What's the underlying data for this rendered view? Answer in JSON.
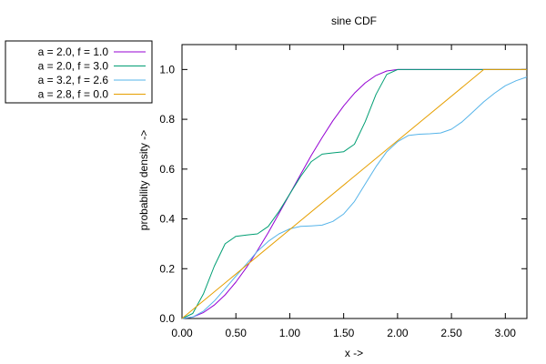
{
  "chart_data": {
    "type": "line",
    "title": "sine CDF",
    "xlabel": "x ->",
    "ylabel": "probability density ->",
    "xlim": [
      0,
      3.2
    ],
    "ylim": [
      0,
      1.1
    ],
    "x_ticks": [
      0,
      0.5,
      1.0,
      1.5,
      2.0,
      2.5,
      3.0
    ],
    "x_tick_labels": [
      "0.00",
      "0.50",
      "1.00",
      "1.50",
      "2.00",
      "2.50",
      "3.00"
    ],
    "y_ticks": [
      0,
      0.2,
      0.4,
      0.6,
      0.8,
      1.0
    ],
    "y_tick_labels": [
      "0.0",
      "0.2",
      "0.4",
      "0.6",
      "0.8",
      "1.0"
    ],
    "grid": false,
    "legend_position": "left, outside plot area",
    "series": [
      {
        "name": "a = 2.0, f = 1.0",
        "color": "#9400d3",
        "x": [
          0.0,
          0.1,
          0.2,
          0.3,
          0.4,
          0.5,
          0.6,
          0.7,
          0.8,
          0.9,
          1.0,
          1.1,
          1.2,
          1.3,
          1.4,
          1.5,
          1.6,
          1.7,
          1.8,
          1.9,
          2.0,
          2.2,
          2.4,
          2.6,
          2.8,
          3.0,
          3.2
        ],
        "y": [
          0.0,
          0.006,
          0.024,
          0.054,
          0.095,
          0.146,
          0.206,
          0.273,
          0.345,
          0.422,
          0.5,
          0.578,
          0.655,
          0.727,
          0.794,
          0.854,
          0.905,
          0.946,
          0.976,
          0.994,
          1.0,
          1.0,
          1.0,
          1.0,
          1.0,
          1.0,
          1.0
        ]
      },
      {
        "name": "a = 2.0, f = 3.0",
        "color": "#009e73",
        "x": [
          0.0,
          0.1,
          0.2,
          0.3,
          0.4,
          0.5,
          0.6,
          0.7,
          0.8,
          0.9,
          1.0,
          1.1,
          1.2,
          1.3,
          1.4,
          1.5,
          1.6,
          1.7,
          1.8,
          1.9,
          2.0,
          2.2,
          2.4,
          2.6,
          2.8,
          3.0,
          3.2
        ],
        "y": [
          0.0,
          0.02,
          0.1,
          0.21,
          0.3,
          0.33,
          0.335,
          0.34,
          0.37,
          0.43,
          0.5,
          0.57,
          0.63,
          0.66,
          0.665,
          0.67,
          0.7,
          0.79,
          0.9,
          0.98,
          1.0,
          1.0,
          1.0,
          1.0,
          1.0,
          1.0,
          1.0
        ]
      },
      {
        "name": "a = 3.2, f = 2.6",
        "color": "#56b4e9",
        "x": [
          0.0,
          0.1,
          0.2,
          0.3,
          0.4,
          0.5,
          0.6,
          0.7,
          0.8,
          0.9,
          1.0,
          1.1,
          1.2,
          1.3,
          1.4,
          1.5,
          1.6,
          1.7,
          1.8,
          1.9,
          2.0,
          2.1,
          2.2,
          2.3,
          2.4,
          2.5,
          2.6,
          2.7,
          2.8,
          2.9,
          3.0,
          3.1,
          3.2
        ],
        "y": [
          0.0,
          0.006,
          0.03,
          0.07,
          0.12,
          0.17,
          0.22,
          0.27,
          0.31,
          0.34,
          0.36,
          0.37,
          0.372,
          0.375,
          0.39,
          0.42,
          0.47,
          0.54,
          0.61,
          0.67,
          0.71,
          0.735,
          0.74,
          0.742,
          0.745,
          0.76,
          0.79,
          0.83,
          0.87,
          0.905,
          0.935,
          0.955,
          0.97
        ]
      },
      {
        "name": "a = 2.8, f = 0.0",
        "color": "#e69f00",
        "x": [
          0.0,
          2.8,
          3.2
        ],
        "y": [
          0.0,
          1.0,
          1.0
        ]
      }
    ]
  }
}
